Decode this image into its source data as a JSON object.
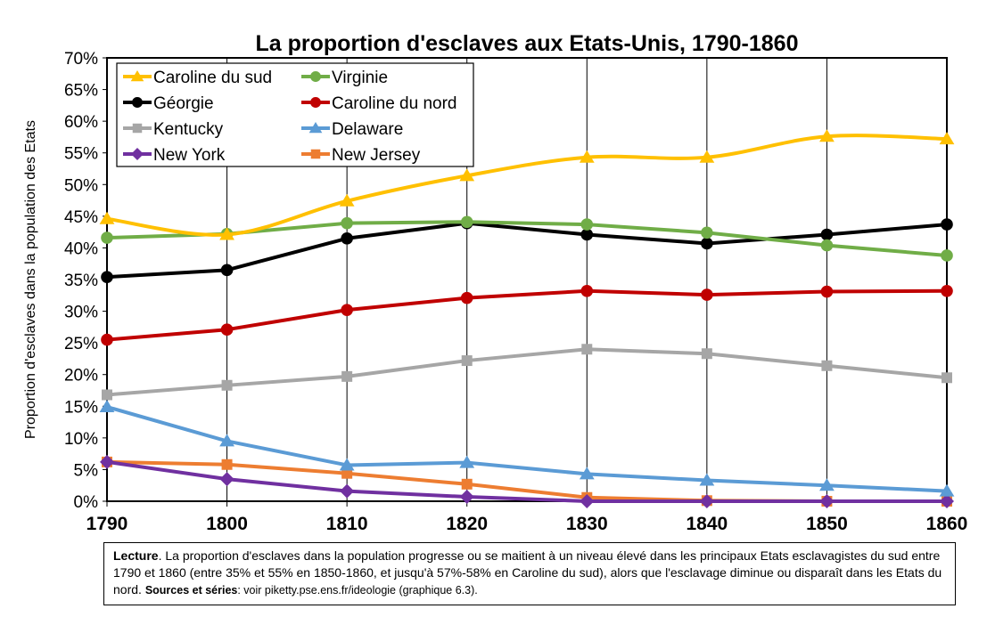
{
  "chart_data": {
    "type": "line",
    "title": "La proportion d'esclaves aux Etats-Unis, 1790-1860",
    "ylabel": "Proportion d'esclaves dans la population des Etats",
    "xlabel": "",
    "x": [
      1790,
      1800,
      1810,
      1820,
      1830,
      1840,
      1850,
      1860
    ],
    "ylim": [
      0,
      0.7
    ],
    "y_ticks": [
      0,
      0.05,
      0.1,
      0.15,
      0.2,
      0.25,
      0.3,
      0.35,
      0.4,
      0.45,
      0.5,
      0.55,
      0.6,
      0.65,
      0.7
    ],
    "grid": "vertical",
    "legend_position": "top-left",
    "series": [
      {
        "name": "Caroline du sud",
        "color": "#FFC000",
        "marker": "triangle",
        "smooth": true,
        "values": [
          0.446,
          0.421,
          0.474,
          0.514,
          0.543,
          0.543,
          0.576,
          0.572
        ]
      },
      {
        "name": "Virginie",
        "color": "#70AD47",
        "marker": "circle",
        "smooth": false,
        "values": [
          0.416,
          0.422,
          0.439,
          0.441,
          0.437,
          0.424,
          0.404,
          0.388
        ]
      },
      {
        "name": "Géorgie",
        "color": "#000000",
        "marker": "circle",
        "smooth": false,
        "values": [
          0.354,
          0.365,
          0.415,
          0.439,
          0.421,
          0.407,
          0.421,
          0.437
        ]
      },
      {
        "name": "Caroline du nord",
        "color": "#C00000",
        "marker": "circle",
        "smooth": false,
        "values": [
          0.255,
          0.271,
          0.302,
          0.321,
          0.332,
          0.326,
          0.331,
          0.332
        ]
      },
      {
        "name": "Kentucky",
        "color": "#A6A6A6",
        "marker": "square",
        "smooth": false,
        "values": [
          0.168,
          0.183,
          0.197,
          0.222,
          0.24,
          0.233,
          0.214,
          0.195
        ]
      },
      {
        "name": "Delaware",
        "color": "#5B9BD5",
        "marker": "triangle",
        "smooth": false,
        "values": [
          0.149,
          0.095,
          0.057,
          0.061,
          0.043,
          0.033,
          0.025,
          0.016
        ]
      },
      {
        "name": "New York",
        "color": "#7030A0",
        "marker": "diamond",
        "smooth": false,
        "values": [
          0.062,
          0.035,
          0.016,
          0.007,
          0.0,
          0.0,
          0.0,
          0.0
        ]
      },
      {
        "name": "New Jersey",
        "color": "#ED7D31",
        "marker": "square",
        "smooth": false,
        "values": [
          0.062,
          0.058,
          0.044,
          0.027,
          0.006,
          0.001,
          0.0,
          0.0
        ]
      }
    ]
  },
  "caption": {
    "lead": "Lecture",
    "body": ". La proportion d'esclaves dans la population progresse ou se maitient à un niveau élevé dans les principaux Etats esclavagistes du sud entre 1790 et 1860 (entre 35% et 55% en 1850-1860, et jusqu'à 57%-58% en Caroline du sud), alors que l'esclavage diminue ou disparaît dans les Etats du nord.",
    "sources_label": "Sources et séries",
    "sources_text": ": voir piketty.pse.ens.fr/ideologie (graphique 6.3)."
  }
}
